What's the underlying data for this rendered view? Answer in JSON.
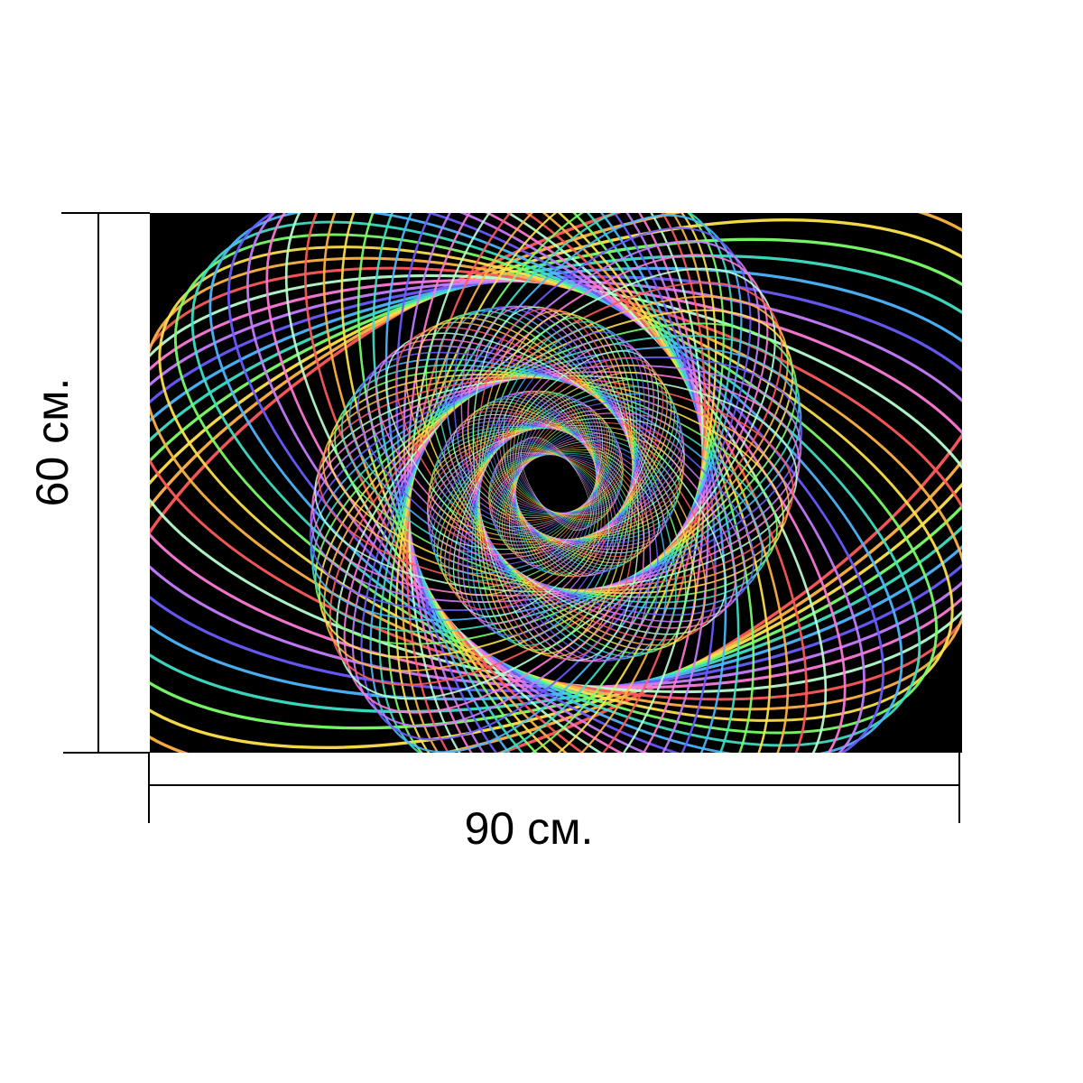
{
  "dimensions": {
    "height_label": "60 см.",
    "width_label": "90 см."
  },
  "artwork": {
    "background": "#000000",
    "palette": [
      "#ff5a5a",
      "#ffb347",
      "#ffe34d",
      "#7cff6b",
      "#3fe0c5",
      "#4db8ff",
      "#6a5cff",
      "#c77dff",
      "#ff7ad9",
      "#b8ffd0"
    ]
  }
}
